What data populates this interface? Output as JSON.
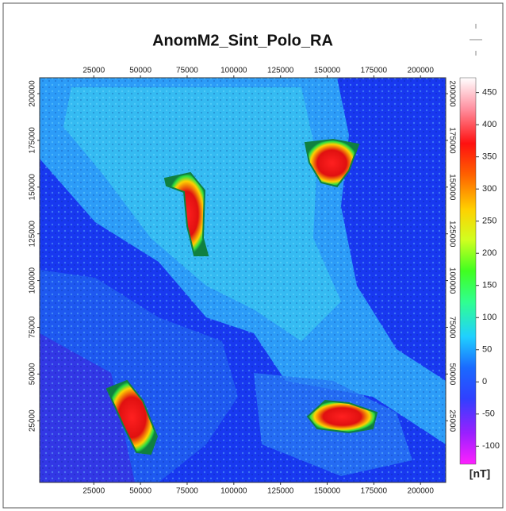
{
  "map": {
    "title": "AnomM2_Sint_Polo_RA",
    "xlim": [
      -4000,
      213500
    ],
    "ylim": [
      -8000,
      208500
    ],
    "xticks": [
      25000,
      50000,
      75000,
      100000,
      125000,
      150000,
      175000,
      200000
    ],
    "yticks": [
      25000,
      50000,
      75000,
      100000,
      125000,
      150000,
      175000,
      200000
    ],
    "colorbar": {
      "label": "[nT]",
      "lim": [
        -128,
        473
      ],
      "ticks": [
        450,
        400,
        350,
        300,
        250,
        200,
        150,
        100,
        50,
        0,
        -50,
        -100
      ]
    }
  }
}
